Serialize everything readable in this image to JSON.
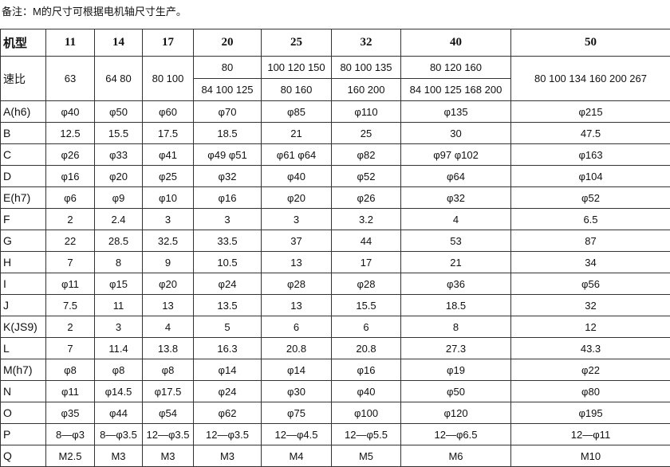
{
  "note": "备注：M的尺寸可根据电机轴尺寸生产。",
  "table": {
    "header": [
      "机型",
      "11",
      "14",
      "17",
      "20",
      "25",
      "32",
      "40",
      "50"
    ],
    "ratio_row": {
      "label": "速比",
      "values": [
        "63",
        "64 80",
        "80 100",
        [
          "80",
          "84 100 125"
        ],
        [
          "100 120 150",
          "80 160"
        ],
        [
          "80 100 135",
          "160 200"
        ],
        [
          "80 120 160",
          "84 100 125 168 200"
        ],
        "80 100 134 160 200 267"
      ]
    },
    "rows": [
      [
        "A(h6)",
        "φ40",
        "φ50",
        "φ60",
        "φ70",
        "φ85",
        "φ110",
        "φ135",
        "φ215"
      ],
      [
        "B",
        "12.5",
        "15.5",
        "17.5",
        "18.5",
        "21",
        "25",
        "30",
        "47.5"
      ],
      [
        "C",
        "φ26",
        "φ33",
        "φ41",
        "φ49 φ51",
        "φ61 φ64",
        "φ82",
        "φ97 φ102",
        "φ163"
      ],
      [
        "D",
        "φ16",
        "φ20",
        "φ25",
        "φ32",
        "φ40",
        "φ52",
        "φ64",
        "φ104"
      ],
      [
        "E(h7)",
        "φ6",
        "φ9",
        "φ10",
        "φ16",
        "φ20",
        "φ26",
        "φ32",
        "φ52"
      ],
      [
        "F",
        "2",
        "2.4",
        "3",
        "3",
        "3",
        "3.2",
        "4",
        "6.5"
      ],
      [
        "G",
        "22",
        "28.5",
        "32.5",
        "33.5",
        "37",
        "44",
        "53",
        "87"
      ],
      [
        "H",
        "7",
        "8",
        "9",
        "10.5",
        "13",
        "17",
        "21",
        "34"
      ],
      [
        "I",
        "φ11",
        "φ15",
        "φ20",
        "φ24",
        "φ28",
        "φ28",
        "φ36",
        "φ56"
      ],
      [
        "J",
        "7.5",
        "11",
        "13",
        "13.5",
        "13",
        "15.5",
        "18.5",
        "32"
      ],
      [
        "K(JS9)",
        "2",
        "3",
        "4",
        "5",
        "6",
        "6",
        "8",
        "12"
      ],
      [
        "L",
        "7",
        "11.4",
        "13.8",
        "16.3",
        "20.8",
        "20.8",
        "27.3",
        "43.3"
      ],
      [
        "M(h7)",
        "φ8",
        "φ8",
        "φ8",
        "φ14",
        "φ14",
        "φ16",
        "φ19",
        "φ22"
      ],
      [
        "N",
        "φ11",
        "φ14.5",
        "φ17.5",
        "φ24",
        "φ30",
        "φ40",
        "φ50",
        "φ80"
      ],
      [
        "O",
        "φ35",
        "φ44",
        "φ54",
        "φ62",
        "φ75",
        "φ100",
        "φ120",
        "φ195"
      ],
      [
        "P",
        "8—φ3",
        "8—φ3.5",
        "12—φ3.5",
        "12—φ3.5",
        "12—φ4.5",
        "12—φ5.5",
        "12—φ6.5",
        "12—φ11"
      ],
      [
        "Q",
        "M2.5",
        "M3",
        "M3",
        "M3",
        "M4",
        "M5",
        "M6",
        "M10"
      ]
    ]
  }
}
